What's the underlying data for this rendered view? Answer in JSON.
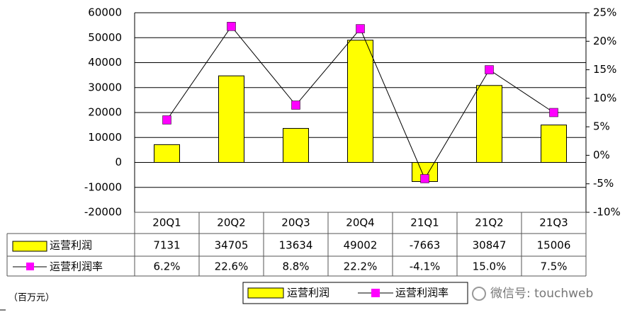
{
  "chart_data": {
    "type": "bar-line",
    "categories": [
      "20Q1",
      "20Q2",
      "20Q3",
      "20Q4",
      "21Q1",
      "21Q2",
      "21Q3"
    ],
    "series": [
      {
        "name": "运营利润",
        "type": "bar",
        "color": "#ffff00",
        "values": [
          7131,
          34705,
          13634,
          49002,
          -7663,
          30847,
          15006
        ]
      },
      {
        "name": "运营利润率",
        "type": "line",
        "axis": "y2",
        "color": "#ff00ff",
        "values": [
          6.2,
          22.6,
          8.8,
          22.2,
          -4.1,
          15.0,
          7.5
        ],
        "value_labels": [
          "6.2%",
          "22.6%",
          "8.8%",
          "22.2%",
          "-4.1%",
          "15.0%",
          "7.5%"
        ]
      }
    ],
    "ylim": [
      -20000,
      60000
    ],
    "yticks": [
      -20000,
      -10000,
      0,
      10000,
      20000,
      30000,
      40000,
      50000,
      60000
    ],
    "y2lim": [
      -10,
      25
    ],
    "y2ticks": [
      {
        "value": -10,
        "label": "-10%"
      },
      {
        "value": -5,
        "label": "-5%"
      },
      {
        "value": 0,
        "label": "0%"
      },
      {
        "value": 5,
        "label": "5%"
      },
      {
        "value": 10,
        "label": "10%"
      },
      {
        "value": 15,
        "label": "15%"
      },
      {
        "value": 20,
        "label": "20%"
      },
      {
        "value": 25,
        "label": "25%"
      }
    ],
    "grid": true,
    "unit_label": "（百万元）",
    "watermark": "微信号: touchweb"
  }
}
